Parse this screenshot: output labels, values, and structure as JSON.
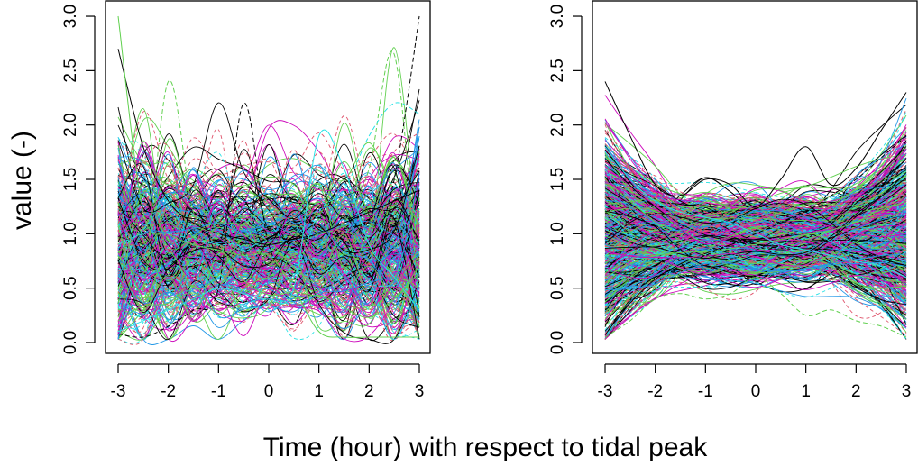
{
  "figure": {
    "ylabel": "value (-)",
    "xlabel": "Time (hour) with respect to tidal peak"
  },
  "colors": {
    "palette": [
      "#000000",
      "#DF536B",
      "#61D04F",
      "#2297E6",
      "#28E2E5",
      "#CD0BBC",
      "#F5C710",
      "#9E9E9E"
    ],
    "frame": "#000000",
    "background": "#ffffff"
  },
  "chart_data": [
    {
      "type": "line",
      "panel": "left",
      "description_type": "functional curves (many series, R matplot style, solid and dashed lines)",
      "x": [
        -3,
        -2.5,
        -2,
        -1.5,
        -1,
        -0.5,
        0,
        0.5,
        1,
        1.5,
        2,
        2.5,
        3
      ],
      "xticks": [
        "-3",
        "-2",
        "-1",
        "0",
        "1",
        "2",
        "3"
      ],
      "yticks": [
        "0.0",
        "0.5",
        "1.0",
        "1.5",
        "2.0",
        "2.5",
        "3.0"
      ],
      "xlim": [
        -3,
        3
      ],
      "ylim": [
        0,
        3.05
      ],
      "grid": false,
      "legend": "none",
      "series_count": 400,
      "series": [
        {
          "values": [
            2.7,
            1.8,
            1.3,
            1.1,
            1.0,
            0.95,
            0.9,
            0.95,
            1.0,
            1.1,
            1.2,
            1.3,
            1.4
          ]
        },
        {
          "values": [
            0.3,
            0.5,
            2.4,
            1.2,
            1.0,
            0.9,
            0.8,
            0.9,
            1.0,
            1.1,
            1.6,
            2.65,
            0.3
          ]
        },
        {
          "values": [
            0.1,
            0.2,
            0.3,
            0.4,
            0.5,
            0.45,
            0.4,
            0.5,
            1.9,
            1.6,
            0.9,
            0.6,
            0.3
          ]
        },
        {
          "values": [
            0.08,
            0.05,
            0.15,
            0.3,
            0.5,
            2.2,
            0.9,
            0.6,
            0.5,
            0.6,
            0.8,
            1.5,
            3.0
          ]
        },
        {
          "values": [
            3.0,
            1.2,
            1.0,
            0.9,
            0.85,
            0.8,
            0.8,
            0.5,
            0.1,
            0.05,
            0.05,
            0.05,
            0.05
          ]
        },
        {
          "values": [
            0.9,
            1.0,
            1.0,
            0.95,
            0.9,
            0.85,
            0.3,
            0.6,
            1.2,
            1.4,
            1.9,
            2.2,
            2.1
          ]
        }
      ]
    },
    {
      "type": "line",
      "panel": "right",
      "description_type": "functional curves (many series, R matplot style, solid and dashed lines)",
      "x": [
        -3,
        -2.5,
        -2,
        -1.5,
        -1,
        -0.5,
        0,
        0.5,
        1,
        1.5,
        2,
        2.5,
        3
      ],
      "xticks": [
        "-3",
        "-2",
        "-1",
        "0",
        "1",
        "2",
        "3"
      ],
      "yticks": [
        "0.0",
        "0.5",
        "1.0",
        "1.5",
        "2.0",
        "2.5",
        "3.0"
      ],
      "xlim": [
        -3,
        3
      ],
      "ylim": [
        0,
        3.05
      ],
      "grid": false,
      "legend": "none",
      "series_count": 900,
      "series": [
        {
          "values": [
            2.4,
            1.9,
            1.45,
            1.35,
            1.5,
            1.45,
            1.25,
            1.5,
            1.8,
            1.45,
            1.6,
            1.95,
            2.3
          ]
        },
        {
          "values": [
            0.05,
            0.2,
            0.4,
            0.45,
            0.4,
            0.45,
            0.6,
            0.45,
            0.25,
            0.3,
            0.2,
            0.15,
            0.05
          ]
        },
        {
          "values": [
            1.8,
            1.5,
            1.3,
            1.2,
            1.15,
            1.1,
            1.0,
            0.9,
            0.85,
            0.8,
            0.75,
            0.7,
            0.6
          ]
        },
        {
          "values": [
            0.3,
            0.45,
            0.6,
            0.7,
            0.8,
            0.9,
            1.0,
            1.1,
            1.2,
            1.35,
            1.5,
            1.7,
            1.9
          ]
        }
      ]
    }
  ]
}
